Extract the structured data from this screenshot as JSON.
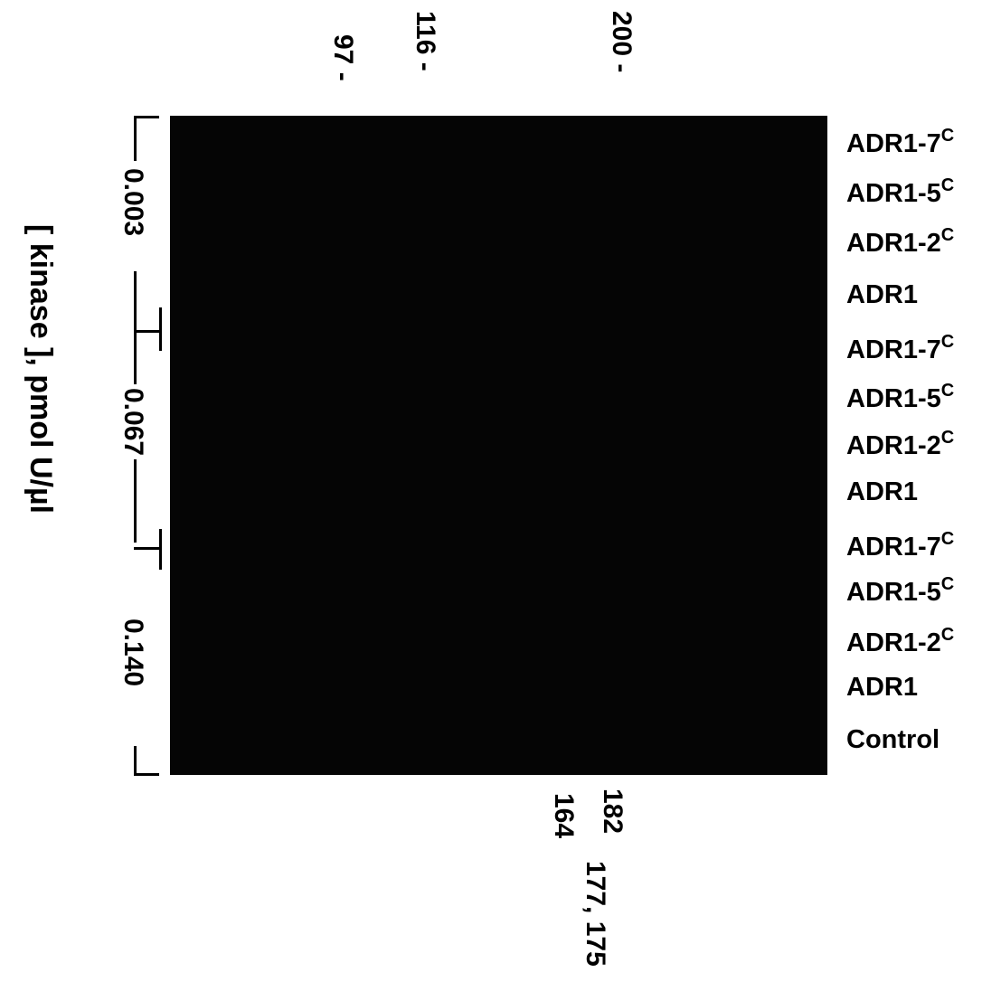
{
  "figure": {
    "axis_label": "[ kinase ], pmol U/µl",
    "top_markers": [
      {
        "text": "97 -"
      },
      {
        "text": "116 -"
      },
      {
        "text": "200 -"
      }
    ],
    "concentrations": [
      "0.003",
      "0.067",
      "0.140"
    ],
    "lanes": [
      {
        "name": "ADR1-7",
        "sup": "C"
      },
      {
        "name": "ADR1-5",
        "sup": "C"
      },
      {
        "name": "ADR1-2",
        "sup": "C"
      },
      {
        "name": "ADR1"
      },
      {
        "name": "ADR1-7",
        "sup": "C"
      },
      {
        "name": "ADR1-5",
        "sup": "C"
      },
      {
        "name": "ADR1-2",
        "sup": "C"
      },
      {
        "name": "ADR1"
      },
      {
        "name": "ADR1-7",
        "sup": "C"
      },
      {
        "name": "ADR1-5",
        "sup": "C"
      },
      {
        "name": "ADR1-2",
        "sup": "C"
      },
      {
        "name": "ADR1"
      },
      {
        "name": "Control"
      }
    ],
    "bottom_labels": [
      "182",
      "164",
      "177, 175"
    ]
  }
}
